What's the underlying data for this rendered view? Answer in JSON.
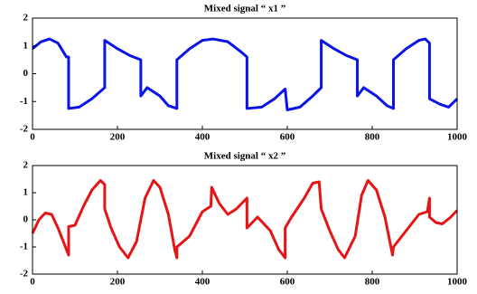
{
  "chart_data": [
    {
      "type": "line",
      "title": "Mixed signal “ x1 ”",
      "x": [
        0,
        20,
        40,
        60,
        80,
        85,
        85,
        110,
        140,
        170,
        170,
        200,
        230,
        255,
        255,
        270,
        300,
        320,
        340,
        340,
        370,
        400,
        425,
        460,
        490,
        505,
        505,
        540,
        570,
        595,
        600,
        630,
        660,
        680,
        680,
        710,
        740,
        765,
        765,
        780,
        810,
        835,
        850,
        850,
        880,
        910,
        925,
        935,
        935,
        960,
        980,
        1000
      ],
      "series": [
        {
          "color": "#0a14e6",
          "values": [
            0.9,
            1.15,
            1.25,
            1.1,
            0.6,
            0.6,
            -1.25,
            -1.2,
            -0.9,
            -0.5,
            1.2,
            0.9,
            0.65,
            0.5,
            -0.8,
            -0.5,
            -0.8,
            -1.15,
            -1.25,
            0.5,
            0.9,
            1.2,
            1.25,
            1.15,
            0.8,
            0.6,
            -1.25,
            -1.2,
            -0.9,
            -0.55,
            -1.3,
            -1.2,
            -0.8,
            -0.5,
            1.2,
            0.9,
            0.65,
            0.5,
            -0.8,
            -0.5,
            -0.8,
            -1.15,
            -1.25,
            0.5,
            0.9,
            1.2,
            1.25,
            1.1,
            -0.9,
            -1.1,
            -1.2,
            -0.9
          ]
        }
      ],
      "xlim": [
        0,
        1000
      ],
      "xticks": [
        0,
        200,
        400,
        600,
        800,
        1000
      ],
      "ylim": [
        -2,
        2
      ],
      "yticks": [
        -2,
        -1,
        0,
        1,
        2
      ]
    },
    {
      "type": "line",
      "title": "Mixed signal “ x2 ”",
      "x": [
        0,
        15,
        30,
        45,
        60,
        75,
        85,
        85,
        100,
        120,
        140,
        160,
        170,
        170,
        185,
        205,
        225,
        245,
        265,
        285,
        300,
        320,
        335,
        340,
        340,
        370,
        400,
        420,
        422,
        440,
        460,
        480,
        505,
        505,
        530,
        560,
        580,
        595,
        595,
        610,
        640,
        660,
        675,
        680,
        700,
        720,
        735,
        760,
        775,
        790,
        810,
        830,
        848,
        850,
        880,
        910,
        930,
        935,
        935,
        950,
        965,
        985,
        1000
      ],
      "series": [
        {
          "color": "#e61414",
          "values": [
            -0.5,
            0,
            0.25,
            0.2,
            -0.3,
            -0.9,
            -1.3,
            -0.25,
            -0.2,
            0.5,
            1.1,
            1.45,
            1.3,
            0.4,
            -0.3,
            -1.0,
            -1.4,
            -0.8,
            0.8,
            1.45,
            1.2,
            0.2,
            -1.1,
            -1.4,
            -1.0,
            -0.6,
            0.3,
            0.5,
            1.2,
            0.6,
            0.2,
            0.4,
            0.8,
            -0.3,
            0.1,
            -0.4,
            -1.1,
            -1.4,
            -0.3,
            0.1,
            0.8,
            1.35,
            1.4,
            0.4,
            -0.4,
            -1.1,
            -1.4,
            -0.6,
            0.9,
            1.45,
            1.1,
            0.1,
            -1.3,
            -1.0,
            -0.4,
            0.2,
            0.3,
            0.8,
            0.1,
            -0.1,
            -0.15,
            0.1,
            0.35
          ]
        }
      ],
      "xlim": [
        0,
        1000
      ],
      "xticks": [
        0,
        200,
        400,
        600,
        800,
        1000
      ],
      "ylim": [
        -2,
        2
      ],
      "yticks": [
        -2,
        -1,
        0,
        1,
        2
      ]
    }
  ]
}
